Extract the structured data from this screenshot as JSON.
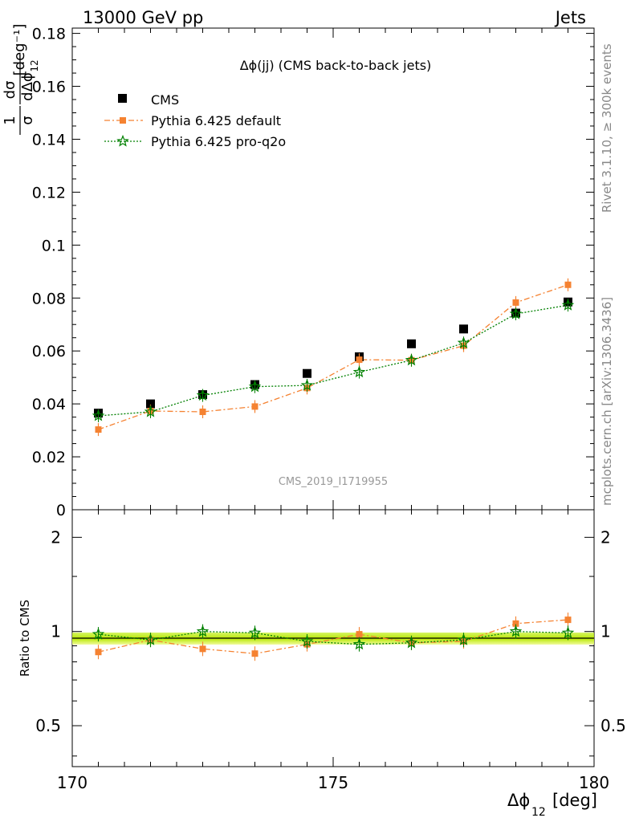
{
  "header": {
    "left": "13000 GeV pp",
    "right": "Jets"
  },
  "side_text": {
    "top": "Rivet 3.1.10, ≥ 300k events",
    "bottom": "mcplots.cern.ch [arXiv:1306.3436]"
  },
  "chart_data": [
    {
      "type": "scatter",
      "title": "Δϕ(jj) (CMS back-to-back jets)",
      "watermark": "CMS_2019_I1719955",
      "ylabel": "1/σ dσ/dΔϕ_12 [deg^-1]",
      "xlim": [
        170,
        180
      ],
      "ylim": [
        0,
        0.182
      ],
      "yticks": [
        "0",
        "0.02",
        "0.04",
        "0.06",
        "0.08",
        "0.1",
        "0.12",
        "0.14",
        "0.16",
        "0.18"
      ],
      "legend_position": "top-left",
      "series": [
        {
          "name": "CMS",
          "color": "#000000",
          "marker": "square",
          "x": [
            170.5,
            171.5,
            172.5,
            173.5,
            174.5,
            175.5,
            176.5,
            177.5,
            178.5,
            179.5
          ],
          "y": [
            0.0365,
            0.04,
            0.0435,
            0.0473,
            0.0515,
            0.0578,
            0.0627,
            0.0683,
            0.0743,
            0.0785
          ]
        },
        {
          "name": "Pythia 6.425 default",
          "color": "#f58231",
          "marker": "square",
          "x": [
            170.5,
            171.5,
            172.5,
            173.5,
            174.5,
            175.5,
            176.5,
            177.5,
            178.5,
            179.5
          ],
          "y": [
            0.0303,
            0.0373,
            0.037,
            0.039,
            0.046,
            0.0567,
            0.0565,
            0.062,
            0.0783,
            0.085
          ]
        },
        {
          "name": "Pythia 6.425 pro-q2o",
          "color": "#008000",
          "marker": "star",
          "x": [
            170.5,
            171.5,
            172.5,
            173.5,
            174.5,
            175.5,
            176.5,
            177.5,
            178.5,
            179.5
          ],
          "y": [
            0.0355,
            0.037,
            0.0432,
            0.0465,
            0.047,
            0.052,
            0.0565,
            0.063,
            0.074,
            0.0773
          ]
        }
      ]
    },
    {
      "type": "scatter",
      "ylabel": "Ratio to CMS",
      "xlabel": "Δϕ_12 [deg]",
      "xlim": [
        170,
        180
      ],
      "ylim_log": [
        0.37,
        2.45
      ],
      "yticks": [
        "0.5",
        "1",
        "2"
      ],
      "xticks": [
        "170",
        "175",
        "180"
      ],
      "series": [
        {
          "name": "Pythia 6.425 default",
          "color": "#f58231",
          "x": [
            170.5,
            171.5,
            172.5,
            173.5,
            174.5,
            175.5,
            176.5,
            177.5,
            178.5,
            179.5
          ],
          "y": [
            0.86,
            0.94,
            0.88,
            0.85,
            0.91,
            0.98,
            0.92,
            0.93,
            1.06,
            1.09
          ]
        },
        {
          "name": "Pythia 6.425 pro-q2o",
          "color": "#008000",
          "x": [
            170.5,
            171.5,
            172.5,
            173.5,
            174.5,
            175.5,
            176.5,
            177.5,
            178.5,
            179.5
          ],
          "y": [
            0.98,
            0.94,
            1.0,
            0.99,
            0.93,
            0.91,
            0.92,
            0.94,
            1.0,
            0.99
          ]
        }
      ]
    }
  ]
}
